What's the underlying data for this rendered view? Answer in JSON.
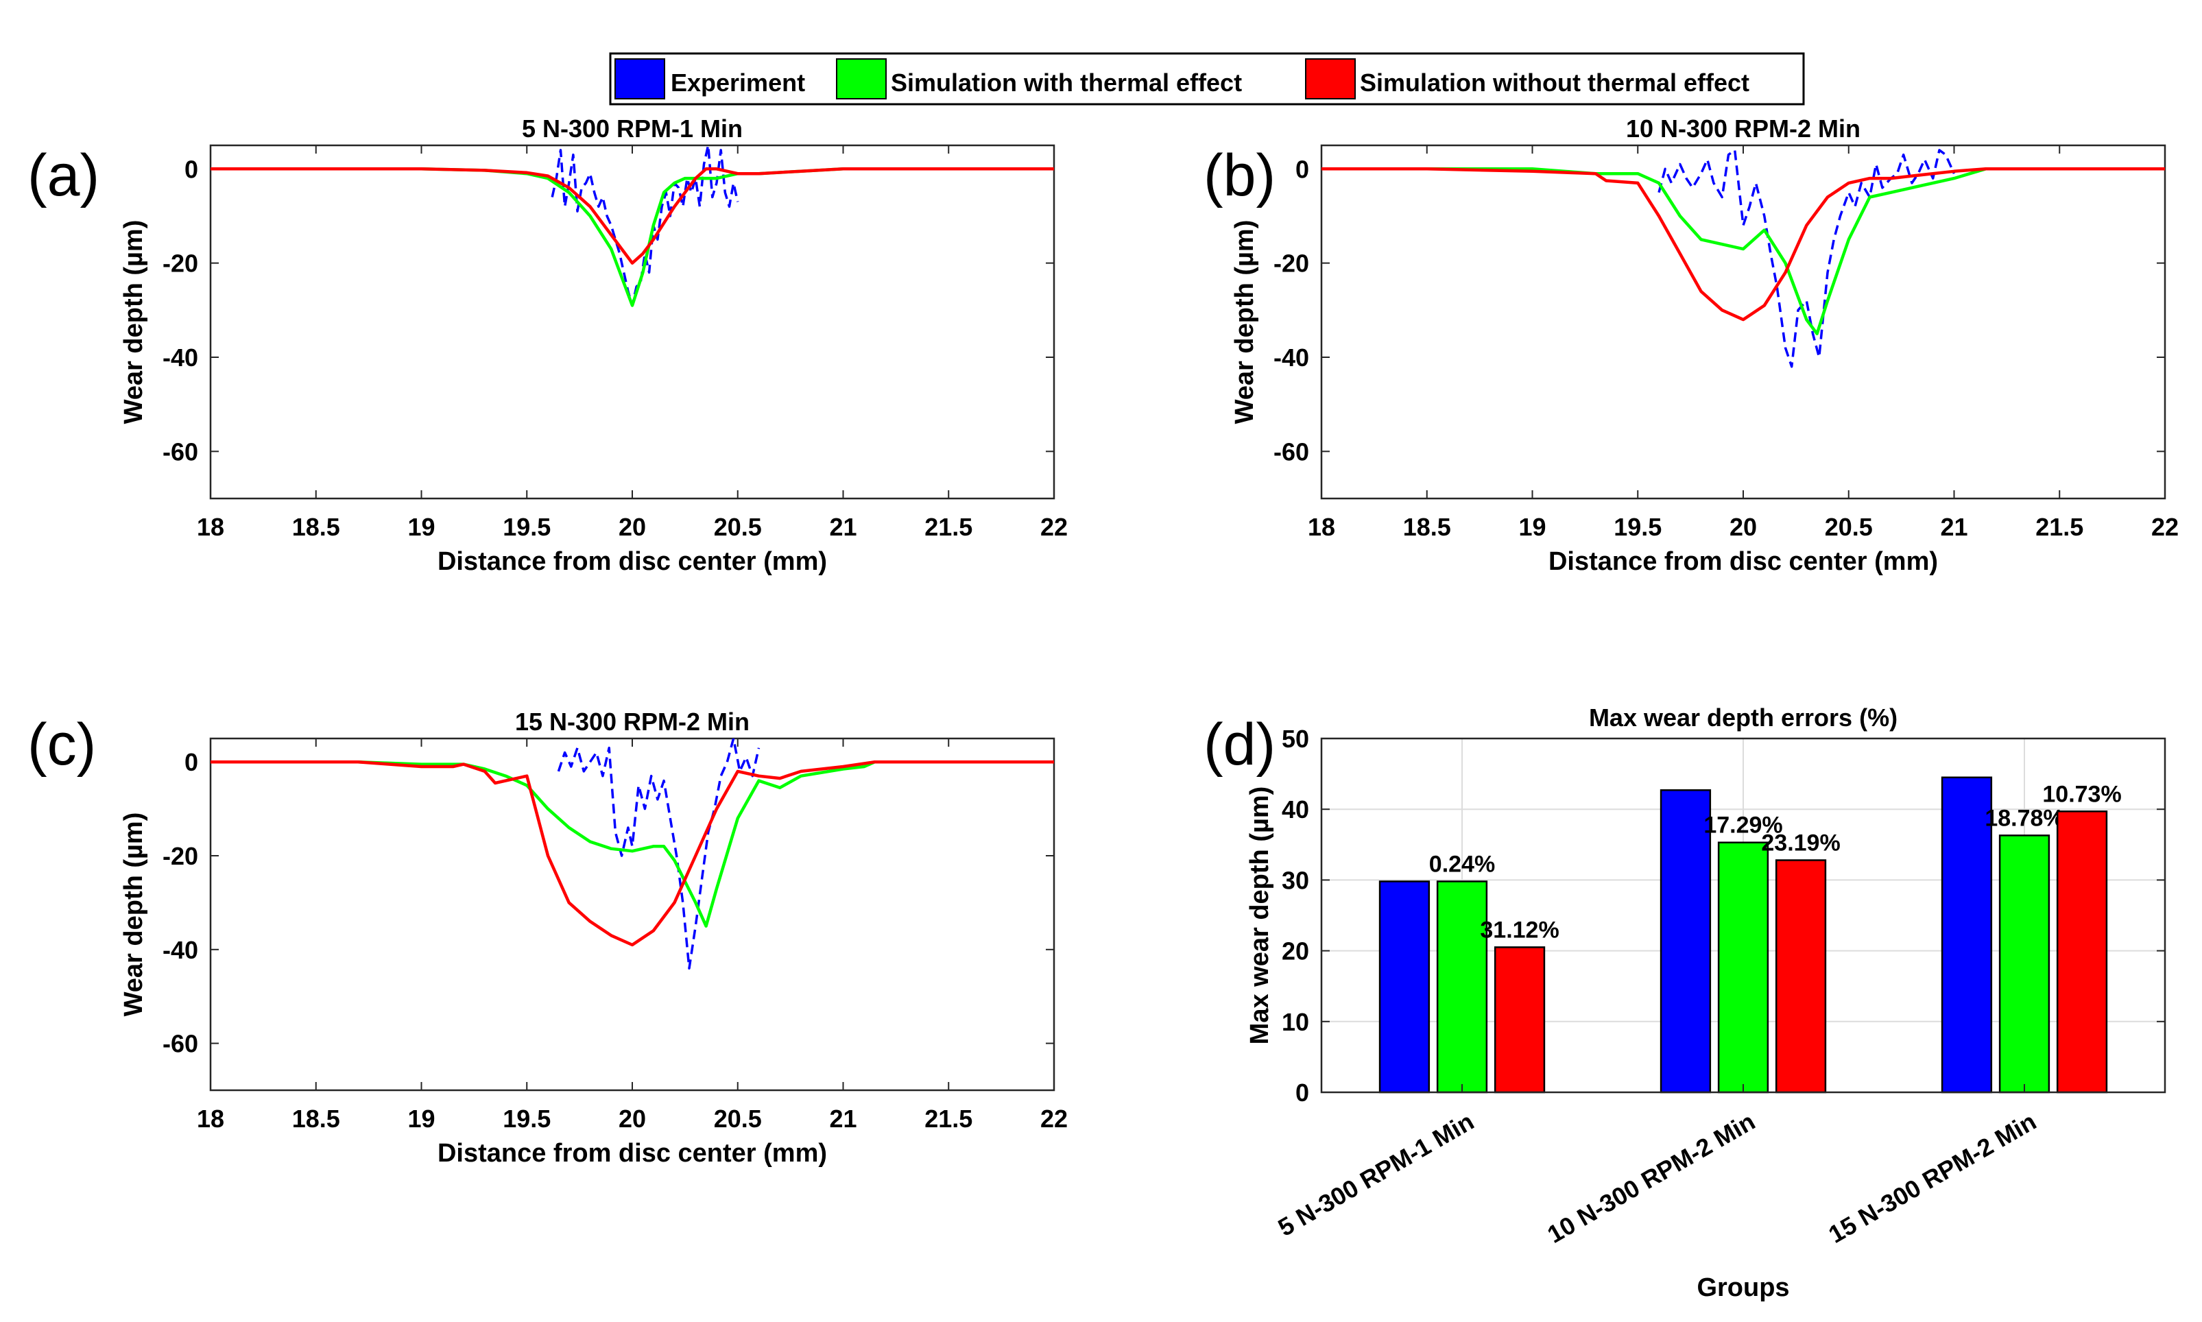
{
  "legend": {
    "items": [
      {
        "label": "Experiment",
        "color": "#0000ff"
      },
      {
        "label": "Simulation with thermal effect",
        "color": "#00ff00"
      },
      {
        "label": "Simulation without thermal effect",
        "color": "#ff0000"
      }
    ]
  },
  "chart_data": [
    {
      "panel": "(a)",
      "type": "line",
      "title": "5 N-300 RPM-1 Min",
      "xlabel": "Distance from disc center (mm)",
      "ylabel": "Wear depth (µm)",
      "xlim": [
        18,
        22
      ],
      "ylim": [
        -70,
        5
      ],
      "xticks": [
        18,
        18.5,
        19,
        19.5,
        20,
        20.5,
        21,
        21.5,
        22
      ],
      "yticks": [
        0,
        -20,
        -40,
        -60
      ],
      "series": [
        {
          "name": "Experiment",
          "color": "#0000ff",
          "style": "dashed",
          "x": [
            19.62,
            19.64,
            19.66,
            19.68,
            19.7,
            19.72,
            19.74,
            19.76,
            19.78,
            19.8,
            19.82,
            19.84,
            19.86,
            19.88,
            19.9,
            19.92,
            19.94,
            19.96,
            19.98,
            20.0,
            20.02,
            20.04,
            20.06,
            20.08,
            20.1,
            20.12,
            20.14,
            20.16,
            20.18,
            20.2,
            20.22,
            20.24,
            20.26,
            20.28,
            20.3,
            20.32,
            20.34,
            20.36,
            20.38,
            20.4,
            20.42,
            20.44,
            20.46,
            20.48,
            20.5
          ],
          "y": [
            -6,
            -2,
            4,
            -8,
            -3,
            3,
            -9,
            -4,
            -3,
            -1,
            -5,
            -8,
            -6,
            -10,
            -12,
            -15,
            -18,
            -22,
            -26,
            -29,
            -25,
            -24,
            -18,
            -22,
            -12,
            -15,
            -8,
            -5,
            -10,
            -3,
            -4,
            -8,
            -2,
            -5,
            -2,
            -8,
            1,
            5,
            -6,
            -3,
            4,
            -5,
            -8,
            -3,
            -7
          ]
        },
        {
          "name": "Simulation with thermal effect",
          "color": "#00ff00",
          "style": "solid",
          "x": [
            18,
            18.5,
            19,
            19.3,
            19.5,
            19.6,
            19.7,
            19.8,
            19.9,
            20.0,
            20.05,
            20.1,
            20.15,
            20.2,
            20.25,
            20.3,
            20.4,
            20.5,
            20.6,
            20.8,
            21,
            21.5,
            22
          ],
          "y": [
            0,
            0,
            0,
            -0.3,
            -1,
            -2,
            -5,
            -10,
            -17,
            -29,
            -22,
            -12,
            -5,
            -3,
            -2,
            -2,
            -2,
            -1,
            -1,
            -0.5,
            0,
            0,
            0
          ]
        },
        {
          "name": "Simulation without thermal effect",
          "color": "#ff0000",
          "style": "solid",
          "x": [
            18,
            18.5,
            19,
            19.3,
            19.5,
            19.6,
            19.7,
            19.8,
            19.9,
            20.0,
            20.05,
            20.1,
            20.2,
            20.3,
            20.35,
            20.4,
            20.5,
            20.6,
            20.8,
            21,
            21.5,
            22
          ],
          "y": [
            0,
            0,
            0,
            -0.3,
            -0.8,
            -1.5,
            -4,
            -8,
            -14,
            -20,
            -18,
            -15,
            -8,
            -2,
            0,
            0,
            -1,
            -1,
            -0.5,
            0,
            0,
            0
          ]
        }
      ]
    },
    {
      "panel": "(b)",
      "type": "line",
      "title": "10 N-300 RPM-2 Min",
      "xlabel": "Distance from disc center (mm)",
      "ylabel": "Wear depth (µm)",
      "xlim": [
        18,
        22
      ],
      "ylim": [
        -70,
        5
      ],
      "xticks": [
        18,
        18.5,
        19,
        19.5,
        20,
        20.5,
        21,
        21.5,
        22
      ],
      "yticks": [
        0,
        -20,
        -40,
        -60
      ],
      "series": [
        {
          "name": "Experiment",
          "color": "#0000ff",
          "style": "dashed",
          "x": [
            19.6,
            19.63,
            19.66,
            19.7,
            19.73,
            19.76,
            19.8,
            19.83,
            19.86,
            19.9,
            19.93,
            19.96,
            20.0,
            20.03,
            20.06,
            20.1,
            20.13,
            20.16,
            20.2,
            20.23,
            20.26,
            20.3,
            20.33,
            20.36,
            20.4,
            20.43,
            20.46,
            20.5,
            20.53,
            20.56,
            20.6,
            20.63,
            20.66,
            20.7,
            20.73,
            20.76,
            20.8,
            20.83,
            20.86,
            20.9,
            20.93,
            20.96,
            21.0
          ],
          "y": [
            -5,
            0,
            -3,
            1,
            -2,
            -4,
            -1,
            2,
            -3,
            -6,
            3,
            4,
            -12,
            -8,
            -3,
            -10,
            -18,
            -25,
            -38,
            -42,
            -30,
            -28,
            -35,
            -40,
            -22,
            -15,
            -10,
            -5,
            -8,
            -3,
            -6,
            1,
            -4,
            -2,
            -1,
            3,
            -3,
            -1,
            2,
            -2,
            4,
            3,
            -1
          ]
        },
        {
          "name": "Simulation with thermal effect",
          "color": "#00ff00",
          "style": "solid",
          "x": [
            18,
            18.5,
            19,
            19.3,
            19.5,
            19.6,
            19.7,
            19.8,
            19.9,
            20.0,
            20.1,
            20.2,
            20.3,
            20.35,
            20.4,
            20.5,
            20.6,
            20.7,
            20.8,
            20.9,
            21,
            21.15,
            21.5,
            22
          ],
          "y": [
            0,
            0,
            0,
            -1,
            -1,
            -3,
            -10,
            -15,
            -16,
            -17,
            -13,
            -20,
            -32,
            -35,
            -28,
            -15,
            -6,
            -5,
            -4,
            -3,
            -2,
            0,
            0,
            0
          ]
        },
        {
          "name": "Simulation without thermal effect",
          "color": "#ff0000",
          "style": "solid",
          "x": [
            18,
            18.5,
            19,
            19.3,
            19.35,
            19.5,
            19.6,
            19.7,
            19.8,
            19.9,
            20.0,
            20.1,
            20.2,
            20.3,
            20.4,
            20.5,
            20.6,
            20.7,
            20.8,
            21,
            21.15,
            21.5,
            22
          ],
          "y": [
            0,
            0,
            -0.5,
            -1,
            -2.5,
            -3,
            -10,
            -18,
            -26,
            -30,
            -32,
            -29,
            -22,
            -12,
            -6,
            -3,
            -2,
            -2,
            -1.5,
            -0.5,
            0,
            0,
            0
          ]
        }
      ]
    },
    {
      "panel": "(c)",
      "type": "line",
      "title": "15 N-300 RPM-2 Min",
      "xlabel": "Distance from disc center (mm)",
      "ylabel": "Wear depth (µm)",
      "xlim": [
        18,
        22
      ],
      "ylim": [
        -70,
        5
      ],
      "xticks": [
        18,
        18.5,
        19,
        19.5,
        20,
        20.5,
        21,
        21.5,
        22
      ],
      "yticks": [
        0,
        -20,
        -40,
        -60
      ],
      "series": [
        {
          "name": "Experiment",
          "color": "#0000ff",
          "style": "dashed",
          "x": [
            19.65,
            19.68,
            19.71,
            19.74,
            19.77,
            19.8,
            19.83,
            19.86,
            19.89,
            19.92,
            19.95,
            19.98,
            20.0,
            20.03,
            20.06,
            20.09,
            20.12,
            20.15,
            20.18,
            20.21,
            20.24,
            20.27,
            20.3,
            20.33,
            20.36,
            20.39,
            20.42,
            20.45,
            20.48,
            20.51,
            20.54,
            20.57,
            20.6
          ],
          "y": [
            -2,
            2,
            -1,
            3,
            -2,
            0,
            2,
            -3,
            3,
            -15,
            -20,
            -14,
            -18,
            -5,
            -10,
            -3,
            -8,
            -4,
            -12,
            -20,
            -30,
            -44,
            -35,
            -25,
            -15,
            -10,
            -3,
            0,
            5,
            -2,
            1,
            -3,
            3
          ]
        },
        {
          "name": "Simulation with thermal effect",
          "color": "#00ff00",
          "style": "solid",
          "x": [
            18,
            18.5,
            18.7,
            19,
            19.1,
            19.2,
            19.3,
            19.4,
            19.5,
            19.6,
            19.7,
            19.8,
            19.9,
            20.0,
            20.1,
            20.15,
            20.2,
            20.3,
            20.35,
            20.4,
            20.5,
            20.6,
            20.7,
            20.8,
            21,
            21.1,
            21.15,
            21.5,
            22
          ],
          "y": [
            0,
            0,
            0,
            -0.5,
            -0.5,
            -0.5,
            -1.5,
            -3,
            -5,
            -10,
            -14,
            -17,
            -18.5,
            -19,
            -18,
            -18,
            -21,
            -30,
            -35,
            -27,
            -12,
            -4,
            -5.5,
            -3,
            -1.5,
            -1,
            0,
            0,
            0
          ]
        },
        {
          "name": "Simulation without thermal effect",
          "color": "#ff0000",
          "style": "solid",
          "x": [
            18,
            18.5,
            18.7,
            19,
            19.15,
            19.2,
            19.3,
            19.35,
            19.5,
            19.6,
            19.7,
            19.8,
            19.9,
            20.0,
            20.1,
            20.2,
            20.3,
            20.4,
            20.5,
            20.6,
            20.7,
            20.8,
            21,
            21.15,
            21.5,
            22
          ],
          "y": [
            0,
            0,
            0,
            -1,
            -1,
            -0.5,
            -2,
            -4.5,
            -3,
            -20,
            -30,
            -34,
            -37,
            -39,
            -36,
            -30,
            -20,
            -10,
            -2,
            -3,
            -3.5,
            -2,
            -1,
            0,
            0,
            0
          ]
        }
      ]
    },
    {
      "panel": "(d)",
      "type": "bar",
      "title": "Max wear depth errors (%)",
      "xlabel": "Groups",
      "ylabel": "Max wear depth (µm)",
      "ylim": [
        0,
        50
      ],
      "yticks": [
        0,
        10,
        20,
        30,
        40,
        50
      ],
      "grid": true,
      "categories": [
        "5 N-300 RPM-1 Min",
        "10 N-300 RPM-2 Min",
        "15 N-300 RPM-2 Min"
      ],
      "series": [
        {
          "name": "Experiment",
          "color": "#0000ff",
          "values": [
            29.8,
            42.7,
            44.5
          ],
          "labels": [
            "",
            "",
            ""
          ]
        },
        {
          "name": "Simulation with thermal effect",
          "color": "#00ff00",
          "values": [
            29.8,
            35.3,
            36.3
          ],
          "labels": [
            "0.24%",
            "17.29%",
            "18.78%"
          ]
        },
        {
          "name": "Simulation without thermal effect",
          "color": "#ff0000",
          "values": [
            20.5,
            32.8,
            39.7
          ],
          "labels": [
            "31.12%",
            "23.19%",
            "10.73%"
          ]
        }
      ]
    }
  ]
}
